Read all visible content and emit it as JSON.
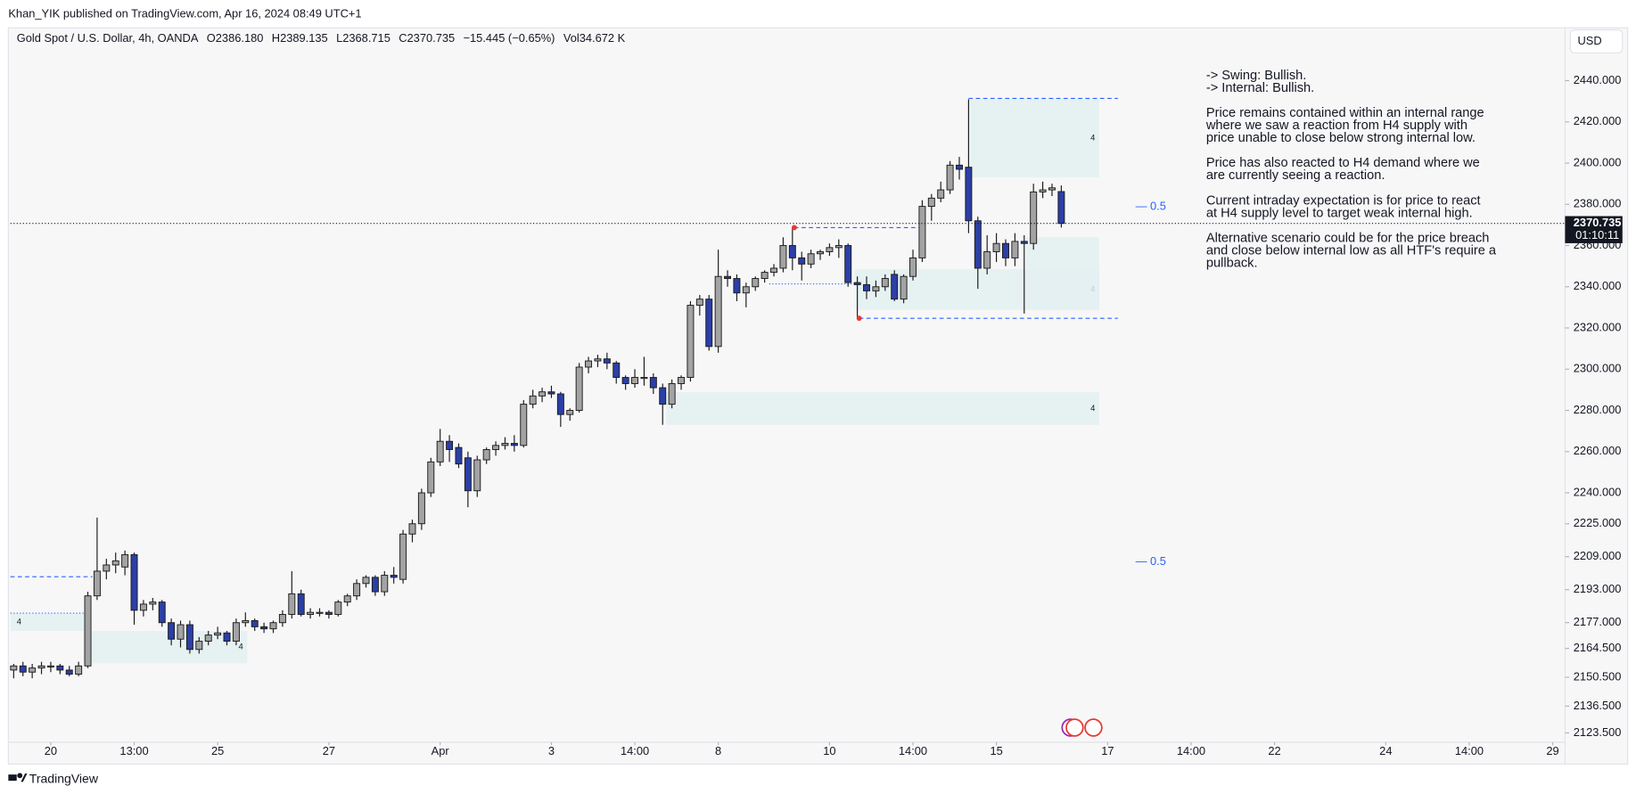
{
  "header": {
    "published": "Khan_YIK published on TradingView.com, Apr 16, 2024 08:49 UTC+1",
    "legend": [
      "Gold Spot / U.S. Dollar, 4h, OANDA",
      "O2386.180",
      "H2389.135",
      "L2368.715",
      "C2370.735",
      "−15.445 (−0.65%)",
      "Vol34.672 K"
    ],
    "currency": "USD"
  },
  "footer": {
    "brand": "TradingView"
  },
  "chart_data": {
    "type": "candlestick",
    "up_color": "#a3a3a3",
    "down_color": "#2b3fa6",
    "zone_color": "#e3f0f1",
    "level_color": "#2962ff",
    "dot_color": "#e53935",
    "x": [
      0,
      1,
      2,
      3,
      4,
      5,
      6,
      7,
      8,
      9,
      10,
      11,
      12,
      13,
      14,
      15,
      16,
      17,
      18,
      19,
      20,
      21,
      22,
      23,
      24,
      25,
      26,
      27,
      28,
      29,
      30,
      31,
      32,
      33,
      34,
      35,
      36,
      37,
      38,
      39,
      40,
      41,
      42,
      43,
      44,
      45,
      46,
      47,
      48,
      49,
      50,
      51,
      52,
      53,
      54,
      55,
      56,
      57,
      58,
      59,
      60,
      61,
      62,
      63,
      64,
      65,
      66,
      67,
      68,
      69,
      70,
      71,
      72,
      73,
      74,
      75,
      76,
      77,
      78,
      79,
      80,
      81,
      82,
      83,
      84,
      85,
      86,
      87,
      88,
      89,
      90,
      91,
      92,
      93,
      94,
      95,
      96,
      97,
      98,
      99,
      100,
      101,
      102,
      103,
      104,
      105,
      106,
      107,
      108,
      109,
      110,
      111,
      112,
      113
    ],
    "open": [
      2154,
      2156,
      2153,
      2155,
      2156,
      2156,
      2154,
      2152,
      2156,
      2190,
      2202,
      2205,
      2204,
      2210,
      2183,
      2186,
      2187,
      2177,
      2169,
      2176,
      2164,
      2168,
      2171,
      2172,
      2168,
      2177,
      2178,
      2175,
      2174,
      2177,
      2181,
      2191,
      2181,
      2182,
      2182,
      2181,
      2187,
      2190,
      2196,
      2199,
      2192,
      2200,
      2198,
      2220,
      2225,
      2240,
      2255,
      2265,
      2262,
      2257,
      2241,
      2256,
      2261,
      2263,
      2264,
      2263,
      2283,
      2287,
      2289,
      2288,
      2278,
      2280,
      2301,
      2304,
      2305,
      2303,
      2296,
      2293,
      2296,
      2296,
      2291,
      2283,
      2293,
      2296,
      2331,
      2334,
      2311,
      2345,
      2344,
      2337,
      2340,
      2344,
      2347,
      2349,
      2360,
      2354,
      2351,
      2356,
      2357,
      2359,
      2360,
      2342,
      2341,
      2338,
      2340,
      2346,
      2334,
      2345,
      2354,
      2379,
      2383,
      2387,
      2399,
      2398,
      2372,
      2349,
      2357,
      2361,
      2354,
      2362,
      2361,
      2386,
      2387,
      2386.18
    ],
    "high": [
      2157,
      2158,
      2157,
      2158,
      2158,
      2157,
      2156,
      2158,
      2192,
      2228,
      2208,
      2211,
      2212,
      2211,
      2188,
      2189,
      2188,
      2179,
      2178,
      2178,
      2170,
      2173,
      2175,
      2173,
      2179,
      2182,
      2179,
      2177,
      2178,
      2183,
      2202,
      2193,
      2184,
      2184,
      2183,
      2188,
      2191,
      2198,
      2200,
      2200,
      2202,
      2204,
      2222,
      2227,
      2242,
      2257,
      2271,
      2268,
      2264,
      2260,
      2258,
      2262,
      2265,
      2267,
      2268,
      2285,
      2290,
      2291,
      2292,
      2289,
      2281,
      2303,
      2306,
      2307,
      2308,
      2304,
      2297,
      2300,
      2306,
      2298,
      2293,
      2295,
      2297,
      2333,
      2336,
      2336,
      2358,
      2348,
      2346,
      2342,
      2345,
      2348,
      2351,
      2364,
      2369,
      2357,
      2358,
      2358,
      2361,
      2363,
      2361,
      2345,
      2345,
      2343,
      2346,
      2348,
      2346,
      2358,
      2382,
      2385,
      2391,
      2401,
      2403,
      2431,
      2374,
      2365,
      2366,
      2363,
      2366,
      2365,
      2390,
      2391,
      2390,
      2389.135
    ],
    "low": [
      2150,
      2151,
      2150,
      2152,
      2153,
      2152,
      2151,
      2151,
      2155,
      2188,
      2198,
      2201,
      2200,
      2176,
      2180,
      2183,
      2175,
      2166,
      2165,
      2162,
      2162,
      2166,
      2169,
      2166,
      2166,
      2175,
      2173,
      2172,
      2172,
      2175,
      2179,
      2180,
      2179,
      2180,
      2179,
      2180,
      2185,
      2188,
      2194,
      2190,
      2190,
      2196,
      2196,
      2216,
      2222,
      2238,
      2253,
      2255,
      2252,
      2233,
      2238,
      2254,
      2258,
      2261,
      2260,
      2262,
      2281,
      2284,
      2286,
      2272,
      2275,
      2279,
      2298,
      2301,
      2300,
      2293,
      2290,
      2291,
      2292,
      2288,
      2273,
      2281,
      2290,
      2294,
      2326,
      2309,
      2308,
      2340,
      2333,
      2330,
      2338,
      2342,
      2345,
      2347,
      2348,
      2343,
      2349,
      2353,
      2355,
      2354,
      2340,
      2325,
      2334,
      2335,
      2338,
      2333,
      2332,
      2343,
      2352,
      2372,
      2381,
      2385,
      2392,
      2366,
      2339,
      2346,
      2352,
      2350,
      2350,
      2327,
      2358,
      2383,
      2384,
      2368.715
    ],
    "close": [
      2156,
      2153,
      2155,
      2156,
      2156,
      2154,
      2152,
      2156,
      2190,
      2202,
      2205,
      2207,
      2210,
      2183,
      2186,
      2187,
      2177,
      2169,
      2176,
      2164,
      2168,
      2171,
      2172,
      2168,
      2177,
      2178,
      2175,
      2174,
      2177,
      2181,
      2191,
      2181,
      2182,
      2182,
      2181,
      2187,
      2190,
      2196,
      2199,
      2192,
      2200,
      2199,
      2220,
      2225,
      2240,
      2255,
      2265,
      2261,
      2254,
      2241,
      2256,
      2261,
      2263,
      2264,
      2263,
      2283,
      2287,
      2289,
      2288,
      2278,
      2280,
      2301,
      2304,
      2305,
      2303,
      2296,
      2293,
      2296,
      2296,
      2291,
      2283,
      2293,
      2296,
      2331,
      2334,
      2311,
      2345,
      2344,
      2337,
      2340,
      2344,
      2347,
      2349,
      2360,
      2354,
      2351,
      2356,
      2357,
      2359,
      2360,
      2342,
      2341,
      2338,
      2340,
      2344,
      2334,
      2345,
      2354,
      2379,
      2383,
      2387,
      2399,
      2397,
      2372,
      2349,
      2357,
      2361,
      2354,
      2362,
      2361,
      2386,
      2387,
      2388,
      2370.735
    ],
    "xlim": [
      -0.35,
      167
    ],
    "xticks": [
      {
        "value": 4,
        "label": "20"
      },
      {
        "value": 13,
        "label": "13:00"
      },
      {
        "value": 22,
        "label": "25"
      },
      {
        "value": 34,
        "label": "27"
      },
      {
        "value": 46,
        "label": "Apr"
      },
      {
        "value": 58,
        "label": "3"
      },
      {
        "value": 67,
        "label": "14:00"
      },
      {
        "value": 76,
        "label": "8"
      },
      {
        "value": 88,
        "label": "10"
      },
      {
        "value": 97,
        "label": "14:00"
      },
      {
        "value": 106,
        "label": "15"
      },
      {
        "value": 118,
        "label": "17"
      },
      {
        "value": 127,
        "label": "14:00"
      },
      {
        "value": 136,
        "label": "22"
      },
      {
        "value": 148,
        "label": "24"
      },
      {
        "value": 157,
        "label": "14:00"
      },
      {
        "value": 166,
        "label": "29"
      }
    ],
    "ylim": [
      2119,
      2454
    ],
    "yticks": [
      {
        "value": 2440,
        "label": "2440.000"
      },
      {
        "value": 2420,
        "label": "2420.000"
      },
      {
        "value": 2400,
        "label": "2400.000"
      },
      {
        "value": 2380,
        "label": "2380.000"
      },
      {
        "value": 2360,
        "label": "2360.000"
      },
      {
        "value": 2340,
        "label": "2340.000"
      },
      {
        "value": 2320,
        "label": "2320.000"
      },
      {
        "value": 2300,
        "label": "2300.000"
      },
      {
        "value": 2280,
        "label": "2280.000"
      },
      {
        "value": 2260,
        "label": "2260.000"
      },
      {
        "value": 2240,
        "label": "2240.000"
      },
      {
        "value": 2225,
        "label": "2225.000"
      },
      {
        "value": 2209,
        "label": "2209.000"
      },
      {
        "value": 2193,
        "label": "2193.000"
      },
      {
        "value": 2177,
        "label": "2177.000"
      },
      {
        "value": 2164.5,
        "label": "2164.500"
      },
      {
        "value": 2150.5,
        "label": "2150.500"
      },
      {
        "value": 2136.5,
        "label": "2136.500"
      },
      {
        "value": 2123.5,
        "label": "2123.500"
      }
    ],
    "grid": false,
    "zones": [
      {
        "x": [
          -0.35,
          8.1
        ],
        "y": [
          2173,
          2181.6
        ],
        "label": "4"
      },
      {
        "x": [
          7.5,
          25.2
        ],
        "y": [
          2157.3,
          2173
        ],
        "label": "4"
      },
      {
        "x": [
          70.4,
          117.1
        ],
        "y": [
          2273,
          2288.8
        ],
        "label": "4"
      },
      {
        "x": [
          90.7,
          117.1
        ],
        "y": [
          2328.8,
          2348.5
        ],
        "label": "4"
      },
      {
        "x": [
          109.2,
          117.1
        ],
        "y": [
          2328.8,
          2364
        ]
      },
      {
        "x": [
          103.1,
          117.1
        ],
        "y": [
          2393,
          2431.4
        ],
        "label": "4"
      }
    ],
    "levels": [
      {
        "value": 2431.4,
        "x": [
          103,
          119.1
        ],
        "style": "dashed"
      },
      {
        "value": 2368.7,
        "x": [
          84.2,
          97.8
        ],
        "style": "dashed"
      },
      {
        "value": 2324.7,
        "x": [
          91.2,
          119.1
        ],
        "style": "dashed"
      },
      {
        "value": 2199.3,
        "x": [
          -0.35,
          8.5
        ],
        "style": "dashed"
      },
      {
        "value": 2181.6,
        "x": [
          -0.35,
          8
        ],
        "style": "dotted"
      },
      {
        "value": 2341.4,
        "x": [
          81.5,
          91.5
        ],
        "style": "dotted"
      }
    ],
    "points": [
      {
        "x": 84.2,
        "y": 2368.7
      },
      {
        "x": 91.2,
        "y": 2324.7
      }
    ],
    "fib_labels": [
      {
        "x": 121,
        "value": 2378.8,
        "label": "— 0.5"
      },
      {
        "x": 121,
        "value": 2206.4,
        "label": "— 0.5"
      }
    ],
    "last_price": 2370.735,
    "countdown": "01:10:11",
    "notes": [
      [
        "-> Swing:  Bullish.",
        "-> Internal:  Bullish."
      ],
      [
        "Price remains contained within an internal range",
        "where we saw a reaction from H4 supply with",
        "price unable to close below strong internal low."
      ],
      [
        "Price has also reacted to H4 demand where we",
        "are currently seeing a reaction."
      ],
      [
        "Current intraday expectation is for price to react",
        "at H4 supply level to target weak internal high."
      ],
      [
        "Alternative scenario could be for the price breach",
        "and close below internal low as all HTF's require a",
        "pullback."
      ]
    ]
  }
}
